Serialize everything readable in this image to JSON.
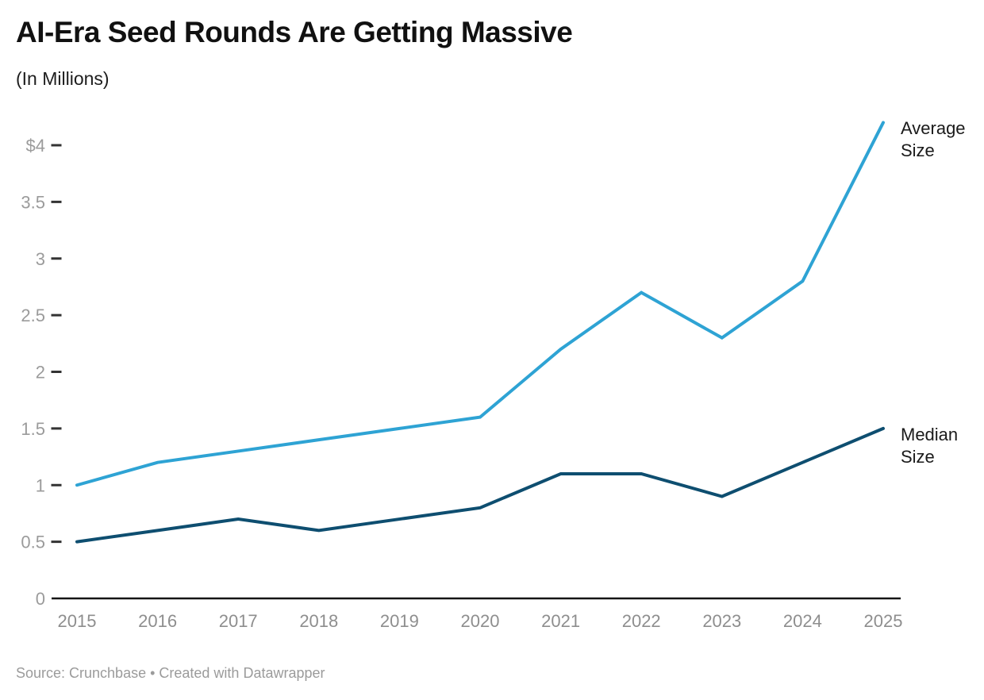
{
  "header": {
    "title": "AI-Era Seed Rounds Are Getting Massive",
    "subtitle": "(In Millions)"
  },
  "footer": {
    "source": "Source: Crunchbase • Created with Datawrapper"
  },
  "chart_data": {
    "type": "line",
    "x": [
      2015,
      2016,
      2017,
      2018,
      2019,
      2020,
      2021,
      2022,
      2023,
      2024,
      2025
    ],
    "series": [
      {
        "name": "Average Size",
        "color": "#2ea3d4",
        "values": [
          1.0,
          1.2,
          1.3,
          1.4,
          1.5,
          1.6,
          2.2,
          2.7,
          2.3,
          2.8,
          4.2
        ]
      },
      {
        "name": "Median Size",
        "color": "#0e4e70",
        "values": [
          0.5,
          0.6,
          0.7,
          0.6,
          0.7,
          0.8,
          1.1,
          1.1,
          0.9,
          1.2,
          1.5
        ]
      }
    ],
    "title": "AI-Era Seed Rounds Are Getting Massive",
    "subtitle": "(In Millions)",
    "xlabel": "",
    "ylabel": "",
    "ylim": [
      0,
      4.2
    ],
    "yticks": [
      0,
      0.5,
      1,
      1.5,
      2,
      2.5,
      3,
      3.5,
      4
    ],
    "ytick_labels": [
      "0",
      "0.5",
      "1",
      "1.5",
      "2",
      "2.5",
      "3",
      "3.5",
      "$4"
    ],
    "grid": false,
    "legend_position": "line-end-labels-right"
  },
  "colors": {
    "axis_line": "#151515",
    "tick_dash": "#333333",
    "ytick_text": "#9b9b9b",
    "xtick_text": "#8e8e8e",
    "label_text": "#1a1a1a",
    "background": "#ffffff"
  }
}
